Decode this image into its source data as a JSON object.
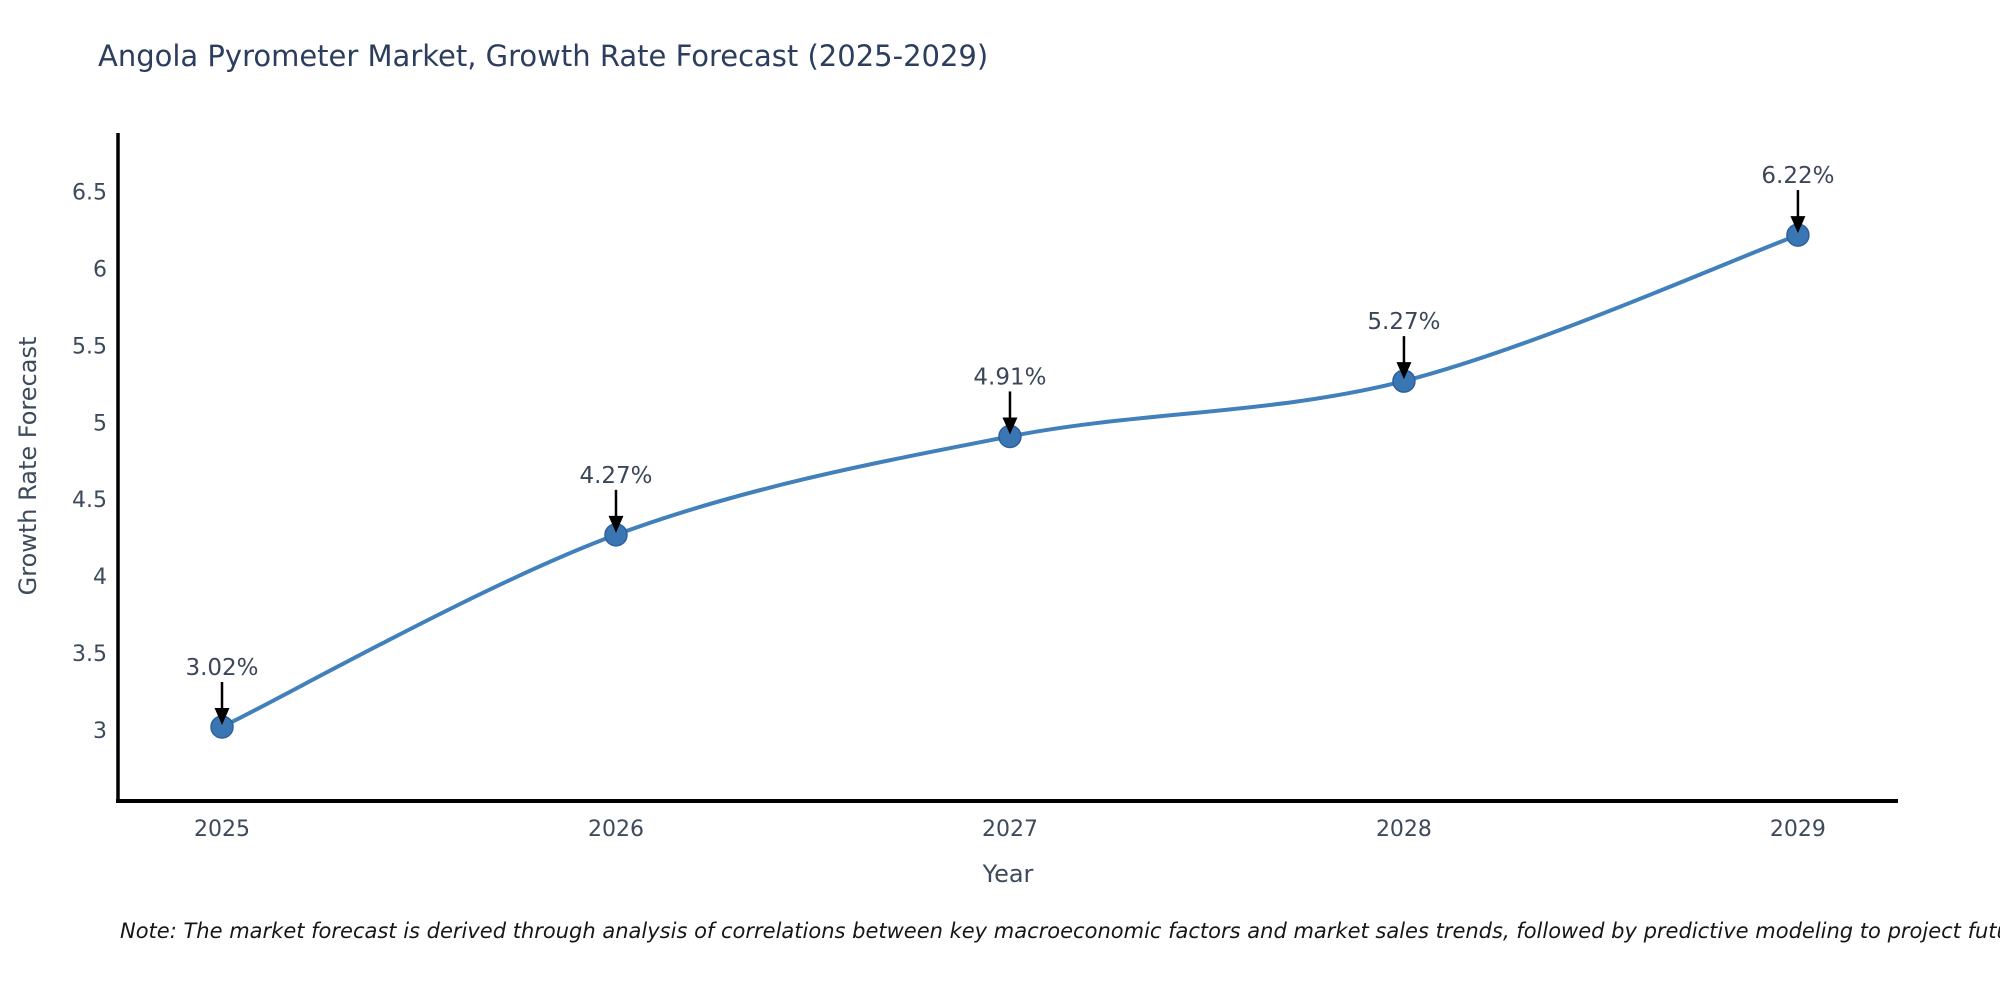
{
  "page": {
    "title": "Angola Pyrometer Market, Growth Rate Forecast (2025-2029)",
    "note": "Note: The market forecast is derived through analysis of correlations between key macroeconomic factors and market sales trends, followed by predictive modeling to project future sales"
  },
  "chart_data": {
    "type": "line",
    "title": "Angola Pyrometer Market, Growth Rate Forecast (2025-2029)",
    "xlabel": "Year",
    "ylabel": "Growth Rate Forecast",
    "x": [
      2025,
      2026,
      2027,
      2028,
      2029
    ],
    "series": [
      {
        "name": "Growth Rate Forecast",
        "values": [
          3.02,
          4.27,
          4.91,
          5.27,
          6.22
        ]
      }
    ],
    "point_labels": [
      "3.02%",
      "4.27%",
      "4.91%",
      "5.27%",
      "6.22%"
    ],
    "xtick_labels": [
      "2025",
      "2026",
      "2027",
      "2028",
      "2029"
    ],
    "ytick_values": [
      3,
      3.5,
      4,
      4.5,
      5,
      5.5,
      6,
      6.5
    ],
    "ytick_labels": [
      "3",
      "3.5",
      "4",
      "4.5",
      "5",
      "5.5",
      "6",
      "6.5"
    ],
    "xlim": [
      2024.736,
      2029.254
    ],
    "ylim": [
      2.545,
      6.884
    ],
    "grid": false,
    "legend": "none",
    "smooth": true,
    "colors": {
      "line": "#4180ba",
      "marker_fill": "#3b76b4",
      "marker_edge": "#2e619b",
      "arrow": "#000000",
      "spine": "#000000"
    }
  }
}
